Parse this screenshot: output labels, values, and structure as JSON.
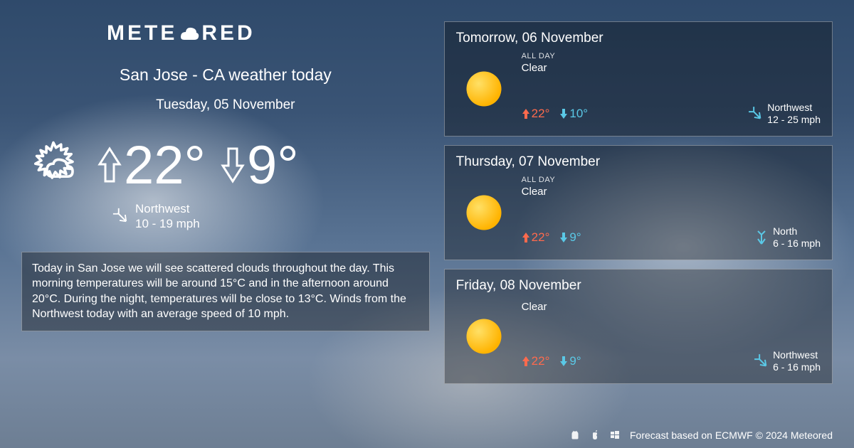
{
  "brand": {
    "prefix": "METE",
    "suffix": "RED"
  },
  "title": "San Jose - CA weather today",
  "today": {
    "date_label": "Tuesday, 05 November",
    "high": "22°",
    "low": "9°",
    "wind_dir": "Northwest",
    "wind_speed": "10 - 19 mph",
    "description": "Today in San Jose we will see scattered clouds throughout the day. This morning temperatures will be around 15°C and in the afternoon around 20°C. During the night, temperatures will be close to 13°C. Winds from the Northwest today with an average speed of 10 mph."
  },
  "colors": {
    "high_arrow": "#ff6a4d",
    "low_arrow": "#5ac8e6",
    "wind_icon": "#5ac8e6",
    "card_bg": "rgba(0,0,0,0.32)",
    "card_border": "rgba(255,255,255,0.35)",
    "text": "#ffffff",
    "sun_fill": "#ffb300",
    "sun_highlight": "#ffe066"
  },
  "forecast": [
    {
      "date_label": "Tomorrow, 06 November",
      "allday_label": "ALL DAY",
      "condition": "Clear",
      "high": "22°",
      "low": "10°",
      "wind_dir": "Northwest",
      "wind_speed": "12 - 25 mph",
      "wind_arrow_rotation": 135
    },
    {
      "date_label": "Thursday, 07 November",
      "allday_label": "ALL DAY",
      "condition": "Clear",
      "high": "22°",
      "low": "9°",
      "wind_dir": "North",
      "wind_speed": "6 - 16 mph",
      "wind_arrow_rotation": 180
    },
    {
      "date_label": "Friday, 08 November",
      "allday_label": "",
      "condition": "Clear",
      "high": "22°",
      "low": "9°",
      "wind_dir": "Northwest",
      "wind_speed": "6 - 16 mph",
      "wind_arrow_rotation": 135
    }
  ],
  "footer": {
    "credit": "Forecast based on ECMWF © 2024 Meteored"
  }
}
